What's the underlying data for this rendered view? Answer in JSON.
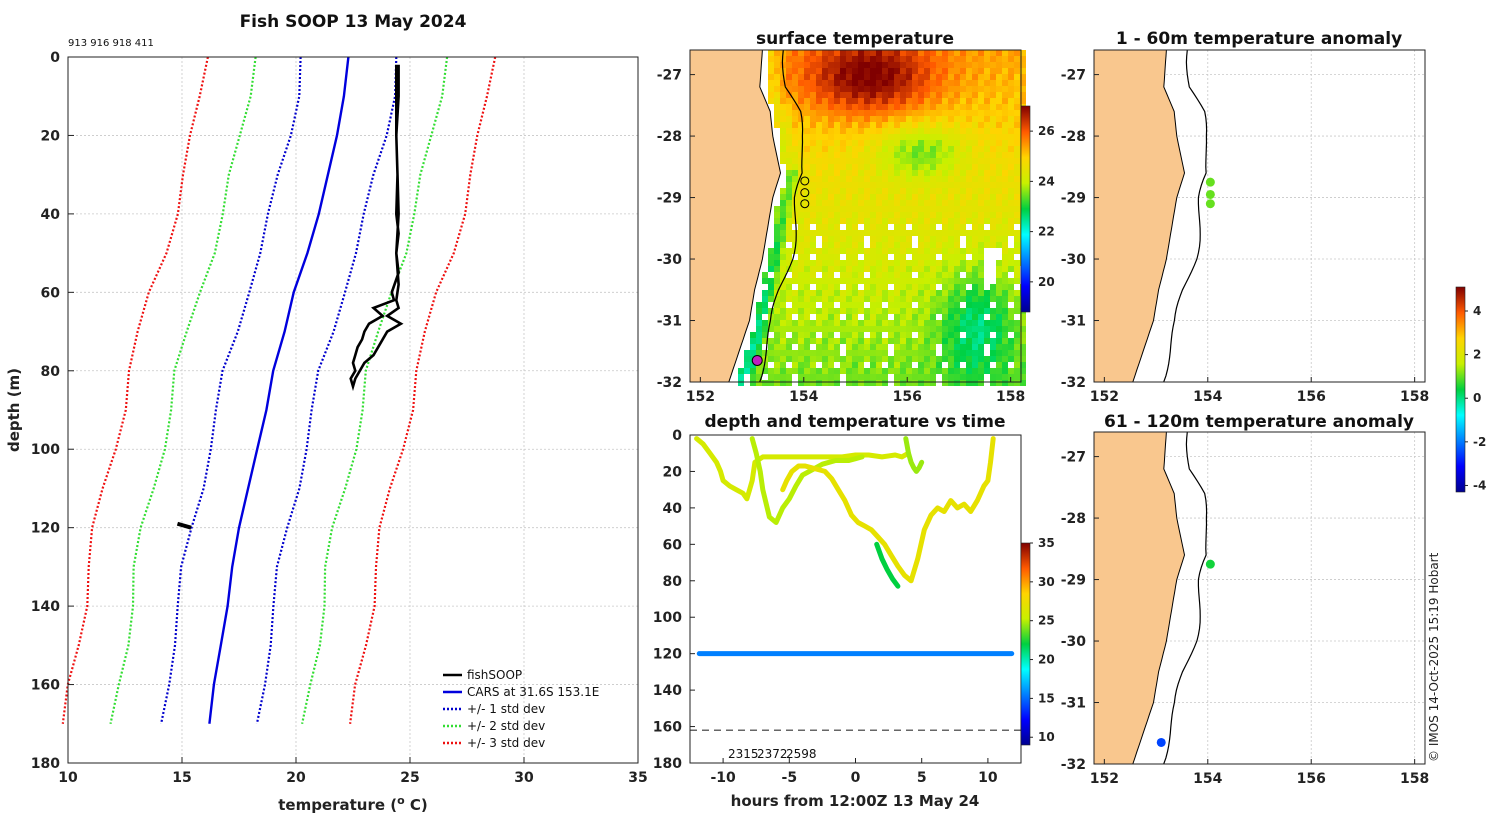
{
  "colors": {
    "fish": "#000000",
    "cars": "#0000dd",
    "std1": "#0000cc",
    "std2": "#33dd33",
    "std3": "#ee1111",
    "land": "#f9c78e",
    "axis": "#222222"
  },
  "chart_data": [
    {
      "id": "profile",
      "type": "line",
      "title": "Fish SOOP 13 May 2024",
      "subtitle": "913 916 918 411",
      "xlabel": "temperature (",
      "xlabel_sup": "o",
      "xlabel_end": " C)",
      "ylabel": "depth (m)",
      "xlim": [
        10,
        35
      ],
      "ylim": [
        0,
        180
      ],
      "y_reversed": true,
      "xticks": [
        10,
        15,
        20,
        25,
        30,
        35
      ],
      "yticks": [
        0,
        20,
        40,
        60,
        80,
        100,
        120,
        140,
        160,
        180
      ],
      "legend": [
        "fishSOOP",
        "CARS at 31.6S 153.1E",
        "+/- 1 std dev",
        "+/- 2 std dev",
        "+/- 3 std dev"
      ],
      "legend_position": "bottom-right",
      "cars_depth": [
        0,
        10,
        20,
        30,
        40,
        50,
        60,
        70,
        80,
        90,
        100,
        110,
        120,
        130,
        140,
        150,
        160,
        170
      ],
      "cars_temp": [
        22.3,
        22.1,
        21.8,
        21.4,
        21.0,
        20.5,
        19.9,
        19.5,
        19.0,
        18.7,
        18.3,
        17.9,
        17.5,
        17.2,
        17.0,
        16.7,
        16.4,
        16.2
      ],
      "std_offset": [
        2.1,
        4.2,
        6.3
      ],
      "fish_depth": [
        2,
        10,
        20,
        30,
        40,
        45,
        50,
        55,
        60,
        62,
        64,
        66,
        68,
        70,
        72,
        74,
        76,
        78,
        80,
        82,
        84,
        82,
        78,
        76,
        73,
        70,
        68,
        66,
        64,
        62,
        58,
        50,
        40,
        30,
        20,
        10,
        2
      ],
      "fish_temp": [
        24.4,
        24.4,
        24.4,
        24.45,
        24.4,
        24.5,
        24.4,
        24.5,
        24.2,
        24.3,
        23.4,
        23.8,
        23.2,
        23.0,
        22.9,
        22.7,
        22.6,
        22.5,
        22.6,
        22.4,
        22.5,
        22.6,
        23.0,
        23.4,
        23.7,
        24.0,
        24.6,
        24.0,
        24.5,
        24.4,
        24.5,
        24.4,
        24.5,
        24.45,
        24.4,
        24.5,
        24.5
      ],
      "fish_blob": {
        "x": [
          14.8,
          15.4
        ],
        "y": [
          119,
          120
        ]
      }
    },
    {
      "id": "sst",
      "type": "heatmap",
      "title": "surface temperature",
      "xlim": [
        151.8,
        158.2
      ],
      "ylim": [
        -32,
        -26.6
      ],
      "xticks": [
        152,
        154,
        156,
        158
      ],
      "yticks": [
        -27,
        -28,
        -29,
        -30,
        -31,
        -32
      ],
      "colorbar": {
        "ticks": [
          20,
          22,
          24,
          26
        ],
        "min": 18.8,
        "max": 27
      },
      "stations": [
        {
          "lon": 154.02,
          "lat": -28.73
        },
        {
          "lon": 154.02,
          "lat": -28.92
        },
        {
          "lon": 154.02,
          "lat": -29.1
        }
      ],
      "current_position": {
        "lon": 153.1,
        "lat": -31.65
      }
    },
    {
      "id": "depth_time",
      "type": "scatter",
      "title": "depth and temperature vs time",
      "xlabel": "hours from 12:00Z 13 May 24",
      "xlim": [
        -12.5,
        12.5
      ],
      "ylim": [
        0,
        180
      ],
      "y_reversed": true,
      "xticks": [
        -10,
        -5,
        0,
        5,
        10
      ],
      "xtick_labels": [
        "-10",
        "-5",
        "0",
        "5",
        "10"
      ],
      "yticks": [
        0,
        20,
        40,
        60,
        80,
        100,
        120,
        140,
        160,
        180
      ],
      "annotations": [
        "2315",
        "2372",
        "2598"
      ],
      "bottom_line_depth": 162,
      "colorbar": {
        "ticks": [
          10,
          15,
          20,
          25,
          30,
          35
        ],
        "min": 9,
        "max": 35
      },
      "tracks": [
        {
          "temp": 26,
          "t": [
            -12,
            -11.5,
            -11,
            -10.5,
            -10.2,
            -10,
            -9.5,
            -9,
            -8.5,
            -8.2,
            -8,
            -7.8,
            -7.6,
            -7,
            -6,
            -5,
            -4,
            -3,
            -2,
            -1,
            0,
            1,
            2,
            3,
            3.5,
            4
          ],
          "d": [
            2,
            5,
            10,
            15,
            20,
            25,
            28,
            30,
            32,
            35,
            30,
            25,
            15,
            12,
            12,
            12,
            12,
            12,
            12,
            12,
            11,
            11,
            12,
            11,
            12,
            10
          ]
        },
        {
          "temp": 25,
          "t": [
            -7.8,
            -7.5,
            -7.2,
            -7,
            -6.5,
            -6,
            -5.5,
            -5,
            -4.5,
            -4,
            -3.5,
            -3,
            -2.5,
            -2,
            -1.5,
            -1,
            -0.5,
            0,
            0.5
          ],
          "d": [
            2,
            10,
            20,
            30,
            45,
            48,
            40,
            35,
            28,
            22,
            20,
            18,
            16,
            15,
            14,
            14,
            14,
            13,
            12
          ]
        },
        {
          "temp": 27,
          "t": [
            -5.5,
            -5.2,
            -4.8,
            -4.3,
            -3.8,
            -3.3,
            -2.8,
            -2.3,
            -1.8,
            -1.3,
            -0.8,
            -0.3,
            0.2,
            0.7,
            1.2,
            1.7,
            2.2,
            2.7,
            3.2,
            3.7,
            4.2,
            4.7,
            5.2,
            5.7,
            6.2,
            6.7,
            7.2,
            7.7,
            8.2,
            8.7,
            9.2,
            9.7,
            10.0,
            10.2,
            10.4
          ],
          "d": [
            30,
            25,
            20,
            17,
            17,
            18,
            19,
            20,
            24,
            30,
            36,
            44,
            48,
            50,
            52,
            56,
            60,
            66,
            72,
            77,
            80,
            68,
            52,
            44,
            40,
            42,
            36,
            40,
            38,
            42,
            36,
            28,
            25,
            15,
            2
          ]
        },
        {
          "temp": 22,
          "t": [
            1.6,
            2.0,
            2.4,
            2.8,
            3.2
          ],
          "d": [
            60,
            68,
            74,
            79,
            83
          ]
        },
        {
          "temp": 24.5,
          "t": [
            3.8,
            4.0,
            4.2,
            4.4,
            4.6,
            4.8,
            5.0
          ],
          "d": [
            2,
            10,
            15,
            18,
            20,
            18,
            15
          ]
        }
      ],
      "bottom_track": {
        "temp": 15.5,
        "t_start": -11.8,
        "t_end": 11.8,
        "d": 120
      }
    },
    {
      "id": "anom_shallow",
      "type": "scatter",
      "title": "1 - 60m temperature anomaly",
      "xlim": [
        151.8,
        158.2
      ],
      "ylim": [
        -32,
        -26.6
      ],
      "xticks": [
        152,
        154,
        156,
        158
      ],
      "yticks": [
        -27,
        -28,
        -29,
        -30,
        -31,
        -32
      ],
      "points": [
        {
          "lon": 154.05,
          "lat": -28.75,
          "anom": 1.0
        },
        {
          "lon": 154.05,
          "lat": -28.95,
          "anom": 1.0
        },
        {
          "lon": 154.05,
          "lat": -29.1,
          "anom": 1.0
        }
      ]
    },
    {
      "id": "anom_deep",
      "type": "scatter",
      "title": "61 - 120m temperature anomaly",
      "xlim": [
        151.8,
        158.2
      ],
      "ylim": [
        -32,
        -26.6
      ],
      "xticks": [
        152,
        154,
        156,
        158
      ],
      "yticks": [
        -27,
        -28,
        -29,
        -30,
        -31,
        -32
      ],
      "points": [
        {
          "lon": 154.05,
          "lat": -28.75,
          "anom": 0.5
        },
        {
          "lon": 153.1,
          "lat": -31.65,
          "anom": -2.5
        }
      ],
      "colorbar": {
        "ticks": [
          -4,
          -2,
          0,
          2,
          4
        ],
        "min": -4.3,
        "max": 5.1
      }
    }
  ],
  "footer": {
    "copyright": "© IMOS 14-Oct-2025 15:19 Hobart"
  }
}
